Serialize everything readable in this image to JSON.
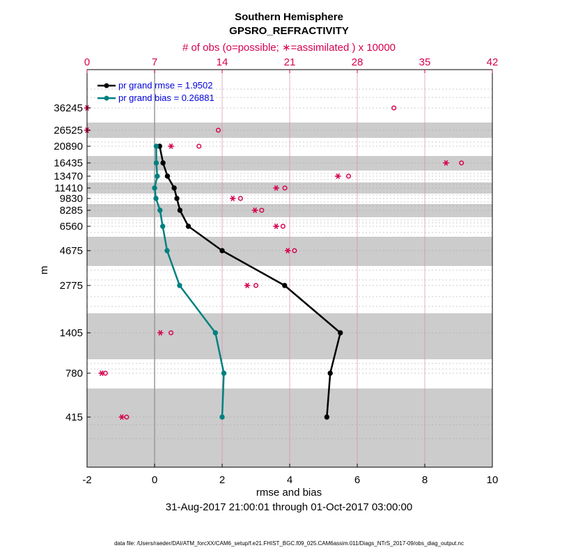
{
  "chart_data": {
    "type": "line",
    "title": "Southern Hemisphere",
    "subtitle": "GPSRO_REFRACTIVITY",
    "top_axis_label": "# of obs (o=possible; ∗=assimilated ) x 10000",
    "xlabel": "rmse and bias",
    "ylabel": "m",
    "date_range": "31-Aug-2017 21:00:01 through 01-Oct-2017 03:00:00",
    "footer": "data file: /Users/raeder/DAI/ATM_forcXX/CAM6_setup/f.e21.FHIST_BGC.f09_025.CAM6assim.011/Diags_NTrS_2017-09/obs_diag_output.nc",
    "xlim": [
      -2,
      10
    ],
    "x_ticks": [
      "-2",
      "0",
      "2",
      "4",
      "6",
      "8",
      "10"
    ],
    "top_xlim": [
      0,
      42
    ],
    "top_ticks": [
      "0",
      "7",
      "14",
      "21",
      "28",
      "35",
      "42"
    ],
    "levels": [
      "36245",
      "26525",
      "20890",
      "16435",
      "13470",
      "11410",
      "9830",
      "8285",
      "6560",
      "4675",
      "2775",
      "1405",
      "780",
      "415"
    ],
    "series": [
      {
        "name": "rmse",
        "legend": "pr grand rmse = 1.9502",
        "color": "#000000",
        "values": [
          null,
          null,
          0.15,
          0.25,
          0.38,
          0.58,
          0.66,
          0.75,
          1.0,
          2.0,
          3.85,
          5.5,
          5.2,
          5.1
        ]
      },
      {
        "name": "bias",
        "legend": "pr grand bias = 0.26881",
        "color": "#008080",
        "values": [
          null,
          null,
          0.05,
          0.05,
          0.08,
          0.0,
          0.04,
          0.16,
          0.24,
          0.37,
          0.74,
          1.8,
          2.05,
          2.0
        ]
      }
    ],
    "obs_possible": [
      31.8,
      13.6,
      11.6,
      38.8,
      27.1,
      20.5,
      15.9,
      18.1,
      20.3,
      21.5,
      17.5,
      8.7,
      1.9,
      4.1
    ],
    "obs_assimilated": [
      0.0,
      0.0,
      8.7,
      37.2,
      26.0,
      19.6,
      15.1,
      17.4,
      19.6,
      20.8,
      16.6,
      7.6,
      1.5,
      3.6
    ],
    "colors": {
      "accent": "#d6004f",
      "rmse": "#000000",
      "bias": "#008080",
      "band": "#cccccc",
      "legend_text": "#0000dd"
    }
  }
}
